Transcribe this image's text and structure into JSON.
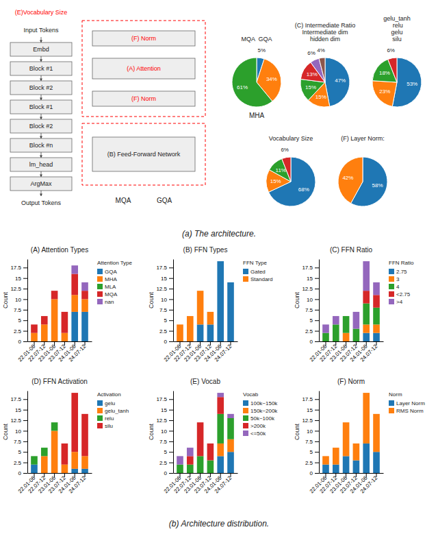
{
  "chart_data": [
    {
      "type": "diagram",
      "title": "(a) The architecture.",
      "annotations": [
        {
          "text": "Input Tokens"
        },
        {
          "text": "Embd"
        },
        {
          "text": "Block #1"
        },
        {
          "text": "Block #2"
        },
        {
          "text": "Block #1"
        },
        {
          "text": "Block #2"
        },
        {
          "text": "Block #n"
        },
        {
          "text": "lm_head"
        },
        {
          "text": "ArgMax"
        },
        {
          "text": "Output Tokens"
        },
        {
          "text": "(A) Attention",
          "color": "red"
        },
        {
          "text": "(F) Norm",
          "color": "red"
        },
        {
          "text": "(F) Norm",
          "color": "red"
        },
        {
          "text": "(B) Feed-Forward Network"
        },
        {
          "text": "(E)Vocabulary Size",
          "color": "red"
        },
        {
          "text": "MQA"
        },
        {
          "text": "GQA"
        }
      ]
    },
    {
      "type": "pie",
      "title": "MQA  GQA",
      "values": [
        5,
        34,
        61
      ],
      "value_labels": [
        "5%",
        "34%",
        "61%"
      ],
      "data_labels": true,
      "annotations": [
        "MHA"
      ]
    },
    {
      "type": "pie",
      "title": "(C) Intermediate Ratio\nIntermediate dim\nhidden dim",
      "values": [
        47,
        15,
        15,
        13,
        6,
        4
      ],
      "value_labels": [
        "47%",
        "15%",
        "15%",
        "13%",
        "6%",
        "4%"
      ],
      "data_labels": true
    },
    {
      "type": "pie",
      "title": "gelu_tanh\n relu\ngelu\nsilu",
      "values": [
        53,
        23,
        18,
        6
      ],
      "value_labels": [
        "53%",
        "23%",
        "18%",
        "6%"
      ],
      "data_labels": true
    },
    {
      "type": "pie",
      "title": "Vocabulary Size",
      "values": [
        68,
        15,
        11,
        6
      ],
      "value_labels": [
        "68%",
        "15%",
        "11%",
        "6%"
      ],
      "data_labels": true
    },
    {
      "type": "pie",
      "title": "(F) Layer Norm:",
      "values": [
        58,
        42
      ],
      "value_labels": [
        "58%",
        "42%"
      ],
      "data_labels": true
    },
    {
      "type": "bar",
      "stacked": true,
      "title": "(A) Attention Types",
      "categories": [
        "22.01-06",
        "22.07-12",
        "23.01-06",
        "23.07-12",
        "24.01-06",
        "24.07-12"
      ],
      "series": [
        {
          "name": "GQA",
          "values": [
            0,
            0,
            0,
            0,
            7,
            7
          ]
        },
        {
          "name": "MHA",
          "values": [
            2,
            4,
            10,
            2,
            4,
            3
          ]
        },
        {
          "name": "MLA",
          "values": [
            0,
            0,
            0,
            0,
            0,
            0
          ]
        },
        {
          "name": "MQA",
          "values": [
            2,
            2,
            2,
            5,
            5,
            2
          ]
        },
        {
          "name": "nan",
          "values": [
            0,
            0,
            0,
            0,
            2,
            2
          ]
        }
      ],
      "ylabel": "Count",
      "ylim": [
        0,
        19.5
      ],
      "yticks": [
        0,
        2.5,
        5,
        7.5,
        10,
        12.5,
        15,
        17.5
      ],
      "legend": "right",
      "legend_title": "Attention Type"
    },
    {
      "type": "bar",
      "stacked": true,
      "title": "(B) FFN Types",
      "categories": [
        "22.01-06",
        "22.07-12",
        "23.01-06",
        "23.07-12",
        "24.01-06",
        "24.07-12"
      ],
      "series": [
        {
          "name": "Gated",
          "values": [
            0,
            0,
            4,
            4,
            19,
            14
          ]
        },
        {
          "name": "Standard",
          "values": [
            4,
            6,
            8,
            3,
            0,
            0
          ]
        }
      ],
      "ylabel": "Count",
      "ylim": [
        0,
        19.5
      ],
      "yticks": [
        0,
        2.5,
        5,
        7.5,
        10,
        12.5,
        15,
        17.5
      ],
      "legend": "right",
      "legend_title": "FFN Type"
    },
    {
      "type": "bar",
      "stacked": true,
      "title": "(C) FFN Ratio",
      "categories": [
        "22.01-06",
        "22.07-12",
        "23.01-06",
        "23.07-12",
        "24.01-06",
        "24.07-12"
      ],
      "series": [
        {
          "name": "2.75",
          "values": [
            0,
            0,
            0,
            0,
            2,
            2
          ]
        },
        {
          "name": "3",
          "values": [
            0,
            0,
            2,
            0,
            2,
            2
          ]
        },
        {
          "name": "4",
          "values": [
            2,
            4,
            4,
            3,
            5,
            4
          ]
        },
        {
          "name": "<2.75",
          "values": [
            0,
            0,
            0,
            0,
            3,
            3
          ]
        },
        {
          "name": ">4",
          "values": [
            2,
            2,
            0,
            4,
            7,
            3
          ]
        }
      ],
      "ylabel": "Count",
      "ylim": [
        0,
        19.5
      ],
      "yticks": [
        0,
        2.5,
        5,
        7.5,
        10,
        12.5,
        15,
        17.5
      ],
      "legend": "right",
      "legend_title": "FFN Ratio"
    },
    {
      "type": "bar",
      "stacked": true,
      "title": "(D) FFN Activation",
      "categories": [
        "22.01-06",
        "22.07-12",
        "23.01-06",
        "23.07-12",
        "24.01-06",
        "24.07-12"
      ],
      "series": [
        {
          "name": "gelu",
          "values": [
            2,
            0,
            0,
            0,
            1,
            1
          ]
        },
        {
          "name": "gelu_tanh",
          "values": [
            0,
            4,
            10,
            2,
            4,
            3
          ]
        },
        {
          "name": "relu",
          "values": [
            2,
            2,
            2,
            0,
            0,
            0
          ]
        },
        {
          "name": "silu",
          "values": [
            0,
            0,
            0,
            5,
            14,
            10
          ]
        }
      ],
      "ylabel": "Count",
      "ylim": [
        0,
        19.5
      ],
      "yticks": [
        0,
        2.5,
        5,
        7.5,
        10,
        12.5,
        15,
        17.5
      ],
      "legend": "right",
      "legend_title": "Activation"
    },
    {
      "type": "bar",
      "stacked": true,
      "title": "(E) Vocab",
      "categories": [
        "22.01-06",
        "22.07-12",
        "23.01-06",
        "23.07-12",
        "24.01-06",
        "24.07-12"
      ],
      "series": [
        {
          "name": "100k~150k",
          "values": [
            0,
            0,
            0,
            0,
            4,
            5
          ]
        },
        {
          "name": "150k~200k",
          "values": [
            0,
            0,
            0,
            0,
            3,
            3
          ]
        },
        {
          "name": "50k~100k",
          "values": [
            2,
            2,
            4,
            3,
            7,
            5
          ]
        },
        {
          "name": ">200k",
          "values": [
            0,
            2,
            8,
            4,
            4,
            0
          ]
        },
        {
          "name": "<=50k",
          "values": [
            2,
            2,
            0,
            0,
            1,
            1
          ]
        }
      ],
      "ylabel": "Count",
      "ylim": [
        0,
        19.5
      ],
      "yticks": [
        0,
        2.5,
        5,
        7.5,
        10,
        12.5,
        15,
        17.5
      ],
      "legend": "right",
      "legend_title": "Vocab"
    },
    {
      "type": "bar",
      "stacked": true,
      "title": "(F) Norm",
      "categories": [
        "22.01-06",
        "22.07-12",
        "23.01-06",
        "23.07-12",
        "24.01-06",
        "24.07-12"
      ],
      "series": [
        {
          "name": "Layer Norm",
          "values": [
            2,
            2,
            4,
            3,
            7,
            5
          ]
        },
        {
          "name": "RMS Norm",
          "values": [
            2,
            4,
            8,
            4,
            12,
            9
          ]
        }
      ],
      "ylabel": "Count",
      "ylim": [
        0,
        19.5
      ],
      "yticks": [
        0,
        2.5,
        5,
        7.5,
        10,
        12.5,
        15,
        17.5
      ],
      "legend": "right",
      "legend_title": "Norm"
    },
    {
      "type": "caption",
      "title": "(b) Architecture distribution."
    }
  ]
}
